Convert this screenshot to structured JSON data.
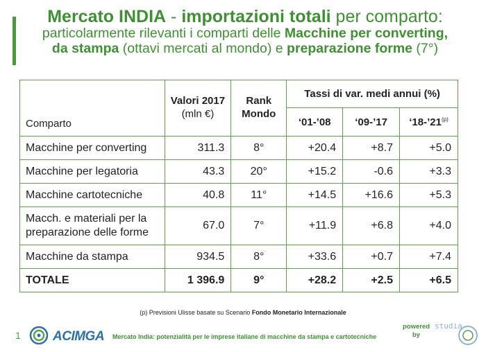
{
  "title": {
    "line1_a": "Mercato INDIA",
    "line1_b": " - ",
    "line1_c": "importazioni totali",
    "line1_d": " per comparto:",
    "line2_a": "particolarmente rilevanti i comparti delle ",
    "line2_b": "Macchine per converting,",
    "line3_a": "da stampa",
    "line3_b": " (ottavi mercati al mondo) e ",
    "line3_c": "preparazione forme",
    "line3_d": " (7°)"
  },
  "table": {
    "headers": {
      "comparto": "Comparto",
      "valori_1": "Valori 2017",
      "valori_2": "(mln €)",
      "rank_1": "Rank",
      "rank_2": "Mondo",
      "tassi": "Tassi di var. medi annui (%)",
      "p1": "‘01-’08",
      "p2": "‘09-’17",
      "p3": "‘18-’21",
      "p3_sup": "(p)"
    },
    "rows": [
      {
        "name": "Macchine per converting",
        "valore": "311.3",
        "rank": "8°",
        "t1": "+20.4",
        "t2": "+8.7",
        "t3": "+5.0"
      },
      {
        "name": "Macchine per legatoria",
        "valore": "43.3",
        "rank": "20°",
        "t1": "+15.2",
        "t2": "-0.6",
        "t3": "+3.3"
      },
      {
        "name": "Macchine cartotecniche",
        "valore": "40.8",
        "rank": "11°",
        "t1": "+14.5",
        "t2": "+16.6",
        "t3": "+5.3"
      },
      {
        "name_1": "Macch. e materiali per la",
        "name_2": "preparazione delle forme",
        "valore": "67.0",
        "rank": "7°",
        "t1": "+11.9",
        "t2": "+6.8",
        "t3": "+4.0"
      },
      {
        "name": "Macchine da stampa",
        "valore": "934.5",
        "rank": "8°",
        "t1": "+33.6",
        "t2": "+0.7",
        "t3": "+7.4"
      }
    ],
    "total": {
      "name": "TOTALE",
      "valore": "1 396.9",
      "rank": "9°",
      "t1": "+28.2",
      "t2": "+2.5",
      "t3": "+6.5"
    }
  },
  "footnote": {
    "a": "(p) Previsioni Ulisse basate su Scenario ",
    "b": "Fondo Monetario  Internazionale"
  },
  "footer": {
    "page_number": "1",
    "logo_text": "ACIMGA",
    "text": "Mercato India: potenzialità per le imprese italiane di macchine da stampa e cartotecniche",
    "powered_1": "powered",
    "powered_2": "by",
    "studia_text": "studia"
  },
  "colors": {
    "accent": "#3f8f33",
    "border": "#5aa04a",
    "acimga_blue": "#2d6fa9"
  }
}
